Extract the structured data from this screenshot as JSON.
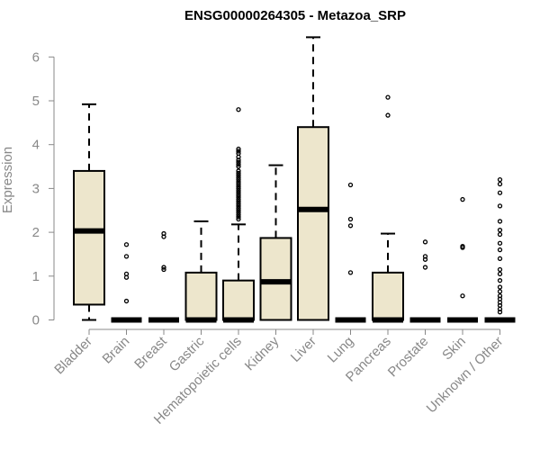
{
  "chart_data": {
    "type": "box",
    "title": "ENSG00000264305 - Metazoa_SRP",
    "xlabel": "",
    "ylabel": "Expression",
    "ylim": [
      0,
      6.6
    ],
    "yticks": [
      0,
      1,
      2,
      3,
      4,
      5,
      6
    ],
    "grid": false,
    "colors": {
      "box_fill": "#ede6cc",
      "box_stroke": "#000000",
      "axis": "#888888",
      "text": "#888888",
      "title": "#000000"
    },
    "categories": [
      "Bladder",
      "Brain",
      "Breast",
      "Gastric",
      "Hematopoietic cells",
      "Kidney",
      "Liver",
      "Lung",
      "Pancreas",
      "Prostate",
      "Skin",
      "Unknown / Other"
    ],
    "boxes": [
      {
        "q1": 0.35,
        "median": 2.03,
        "q3": 3.4,
        "whisker_low": 0.0,
        "whisker_high": 4.92,
        "outliers": []
      },
      {
        "q1": 0,
        "median": 0,
        "q3": 0,
        "whisker_low": 0,
        "whisker_high": 0,
        "outliers": [
          1.72,
          1.45,
          1.05,
          0.97,
          0.43
        ]
      },
      {
        "q1": 0,
        "median": 0,
        "q3": 0,
        "whisker_low": 0,
        "whisker_high": 0,
        "outliers": [
          1.97,
          1.9,
          1.2,
          1.15
        ]
      },
      {
        "q1": 0,
        "median": 0,
        "q3": 1.08,
        "whisker_low": 0,
        "whisker_high": 2.25,
        "outliers": []
      },
      {
        "q1": 0,
        "median": 0,
        "q3": 0.9,
        "whisker_low": 0,
        "whisker_high": 2.18,
        "outliers": [
          4.8,
          3.9,
          3.85,
          3.8,
          3.72,
          3.65,
          3.6,
          3.55,
          3.5,
          3.4,
          3.35,
          3.3,
          3.25,
          3.2,
          3.15,
          3.1,
          3.05,
          3.0,
          2.95,
          2.9,
          2.85,
          2.8,
          2.75,
          2.7,
          2.65,
          2.6,
          2.55,
          2.5,
          2.45,
          2.4,
          2.35,
          2.3
        ]
      },
      {
        "q1": 0,
        "median": 0.87,
        "q3": 1.87,
        "whisker_low": 0,
        "whisker_high": 3.53,
        "outliers": []
      },
      {
        "q1": 0,
        "median": 2.52,
        "q3": 4.4,
        "whisker_low": 0,
        "whisker_high": 6.45,
        "outliers": []
      },
      {
        "q1": 0,
        "median": 0,
        "q3": 0,
        "whisker_low": 0,
        "whisker_high": 0,
        "outliers": [
          3.08,
          2.3,
          2.15,
          1.08
        ]
      },
      {
        "q1": 0,
        "median": 0,
        "q3": 1.08,
        "whisker_low": 0,
        "whisker_high": 1.97,
        "outliers": [
          5.08,
          4.67
        ]
      },
      {
        "q1": 0,
        "median": 0,
        "q3": 0,
        "whisker_low": 0,
        "whisker_high": 0,
        "outliers": [
          1.78,
          1.45,
          1.38,
          1.2
        ]
      },
      {
        "q1": 0,
        "median": 0,
        "q3": 0,
        "whisker_low": 0,
        "whisker_high": 0,
        "outliers": [
          2.75,
          1.68,
          1.65,
          0.55
        ]
      },
      {
        "q1": 0,
        "median": 0,
        "q3": 0,
        "whisker_low": 0,
        "whisker_high": 0,
        "outliers": [
          3.2,
          3.1,
          2.9,
          2.6,
          2.25,
          2.05,
          1.95,
          1.75,
          1.6,
          1.4,
          1.15,
          1.05,
          0.9,
          0.75,
          0.65,
          0.55,
          0.48,
          0.4,
          0.33,
          0.25,
          0.18
        ]
      }
    ]
  }
}
